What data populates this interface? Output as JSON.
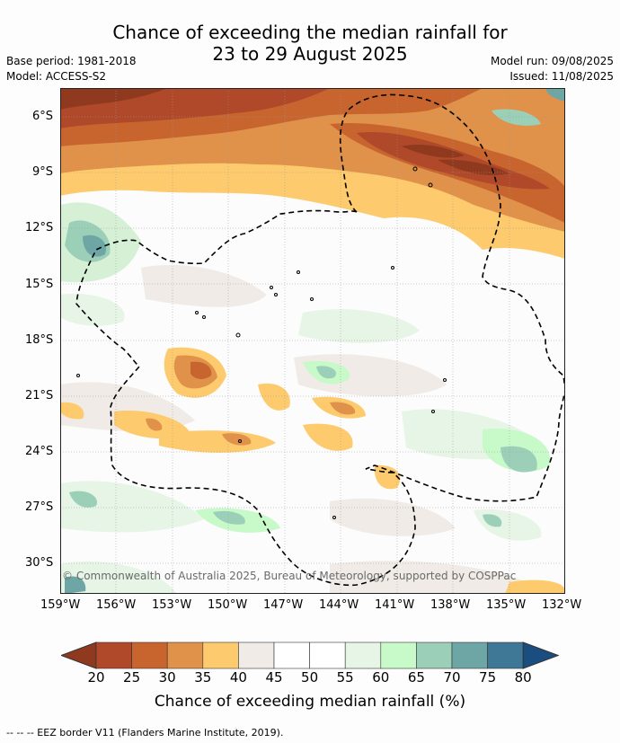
{
  "header": {
    "title_line1": "Chance of exceeding the median rainfall for",
    "title_line2": "23 to 29 August 2025",
    "base_period": "Base period: 1981-2018",
    "model": "Model: ACCESS-S2",
    "model_run": "Model run: 09/08/2025",
    "issued": "Issued: 11/08/2025"
  },
  "map": {
    "copyright": "© Commonwealth of Australia 2025, Bureau of Meteorology, supported by COSPPac",
    "lat_labels": [
      "6°S",
      "9°S",
      "12°S",
      "15°S",
      "18°S",
      "21°S",
      "24°S",
      "27°S",
      "30°S"
    ],
    "lon_labels": [
      "159°W",
      "156°W",
      "153°W",
      "150°W",
      "147°W",
      "144°W",
      "141°W",
      "138°W",
      "135°W",
      "132°W"
    ]
  },
  "colorbar": {
    "title": "Chance of exceeding median rainfall (%)",
    "ticks": [
      "20",
      "25",
      "30",
      "35",
      "40",
      "45",
      "50",
      "55",
      "60",
      "65",
      "70",
      "75",
      "80"
    ],
    "colors": [
      "#8f3a1e",
      "#b0482a",
      "#c8652f",
      "#e0924a",
      "#fdcb6e",
      "#f0ebe6",
      "#ffffff",
      "#ffffff",
      "#e6f5e6",
      "#c7f9c9",
      "#9ccfb8",
      "#6ea6a6",
      "#3f7896",
      "#1a4e80"
    ]
  },
  "footnote": "--  --  -- EEZ border V11 (Flanders Marine Institute, 2019)."
}
